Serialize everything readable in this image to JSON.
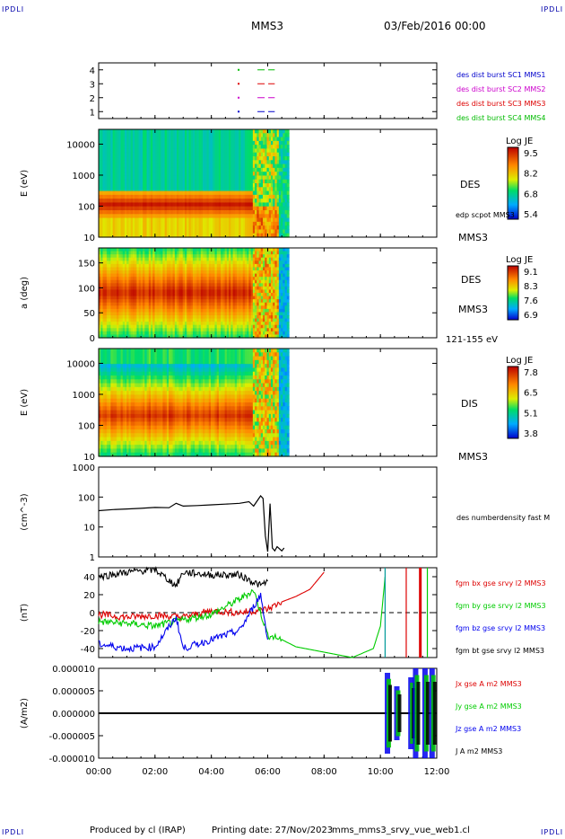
{
  "corner_labels": {
    "top_left": "IPDLI",
    "top_right": "IPDLI",
    "bottom_left": "IPDLI",
    "bottom_right": "IPDLI"
  },
  "header": {
    "spacecraft": "MMS3",
    "datetime": "03/Feb/2016 00:00"
  },
  "footer": {
    "produced_by": "Produced by cl (IRAP)",
    "printing_date": "Printing date: 27/Nov/2023",
    "file": "mms_mms3_srvy_vue_web1.cl"
  },
  "chart_data": [
    {
      "type": "scatter",
      "id": "availability",
      "ylim": [
        0.5,
        4.5
      ],
      "ytick_labels": [
        "1",
        "2",
        "3",
        "4"
      ],
      "segments": [
        {
          "y": 4,
          "from": "05:00",
          "to": "06:15",
          "color": "#00bb00"
        },
        {
          "y": 3,
          "from": "05:00",
          "to": "06:15",
          "color": "#dd0000"
        },
        {
          "y": 2,
          "from": "05:00",
          "to": "06:15",
          "color": "#cc00cc"
        },
        {
          "y": 1,
          "from": "05:00",
          "to": "06:15",
          "color": "#0000cc"
        }
      ],
      "legend": [
        {
          "label": "des dist burst SC1 MMS1",
          "color": "#0000cc"
        },
        {
          "label": "des dist burst SC2 MMS2",
          "color": "#cc00cc"
        },
        {
          "label": "des dist burst SC3 MMS3",
          "color": "#dd0000"
        },
        {
          "label": "des dist burst SC4 MMS4",
          "color": "#00bb00"
        }
      ]
    },
    {
      "type": "heatmap",
      "id": "des-energy",
      "ylabel": "E (eV)",
      "yscale": "log",
      "ylim": [
        10,
        30000
      ],
      "ytick_labels": [
        "10",
        "100",
        "1000",
        "10000"
      ],
      "right_labels": [
        "DES",
        "edp scpot MMS3",
        "MMS3"
      ],
      "colorbar": {
        "title": "Log JE",
        "ticks": [
          "9.5",
          "8.2",
          "6.8",
          "5.4"
        ]
      },
      "data_end": "06:45",
      "description_values": {
        "hot_band_center_eV": 80,
        "band_peak": 9.5,
        "background": 6.0
      }
    },
    {
      "type": "heatmap",
      "id": "des-pitch",
      "ylabel": "a (deg)",
      "ylim": [
        0,
        180
      ],
      "ytick_labels": [
        "0",
        "50",
        "100",
        "150"
      ],
      "right_labels": [
        "DES",
        "MMS3",
        "121-155 eV"
      ],
      "colorbar": {
        "title": "Log JE",
        "ticks": [
          "9.1",
          "8.3",
          "7.6",
          "6.9"
        ]
      },
      "data_end": "06:45"
    },
    {
      "type": "heatmap",
      "id": "dis-energy",
      "ylabel": "E (eV)",
      "yscale": "log",
      "ylim": [
        10,
        30000
      ],
      "ytick_labels": [
        "10",
        "100",
        "1000",
        "10000"
      ],
      "right_labels": [
        "DIS",
        "MMS3"
      ],
      "colorbar": {
        "title": "Log JE",
        "ticks": [
          "7.8",
          "6.5",
          "5.1",
          "3.8"
        ]
      },
      "data_end": "06:45"
    },
    {
      "type": "line",
      "id": "density",
      "ylabel": "(cm^-3)",
      "yscale": "log",
      "ylim": [
        1,
        1000
      ],
      "ytick_labels": [
        "1",
        "10",
        "100",
        "1000"
      ],
      "right_labels": [
        "des numberdensity fast M"
      ],
      "series": [
        {
          "name": "des numberdensity fast M",
          "color": "#000000",
          "x": [
            "00:00",
            "00:30",
            "01:00",
            "01:30",
            "02:00",
            "02:30",
            "02:45",
            "03:00",
            "03:30",
            "04:00",
            "04:30",
            "05:00",
            "05:20",
            "05:30",
            "05:45",
            "05:50",
            "05:55",
            "06:00",
            "06:05",
            "06:10",
            "06:15",
            "06:20",
            "06:30",
            "06:35"
          ],
          "y": [
            35,
            38,
            40,
            42,
            45,
            44,
            62,
            50,
            52,
            55,
            58,
            62,
            70,
            50,
            110,
            90,
            5,
            1.5,
            60,
            2,
            1.6,
            2.2,
            1.6,
            2.0
          ]
        }
      ]
    },
    {
      "type": "line",
      "id": "fgm",
      "ylabel": "(nT)",
      "ylim": [
        -50,
        50
      ],
      "ytick_labels": [
        "-40",
        "-20",
        "0",
        "20",
        "40"
      ],
      "series": [
        {
          "name": "fgm bx gse srvy l2 MMS3",
          "color": "#dd0000",
          "x": [
            "00:00",
            "01:00",
            "02:00",
            "03:00",
            "04:00",
            "05:00",
            "06:00",
            "06:30",
            "07:00",
            "07:30",
            "08:00"
          ],
          "y": [
            -2,
            -5,
            -3,
            -5,
            2,
            0,
            4,
            12,
            18,
            26,
            45
          ]
        },
        {
          "name": "fgm by gse srvy l2 MMS3",
          "color": "#00cc00",
          "x": [
            "00:00",
            "01:00",
            "02:00",
            "03:00",
            "04:00",
            "05:00",
            "05:30",
            "06:00",
            "06:30",
            "07:00",
            "08:00",
            "09:00",
            "09:45",
            "10:00",
            "10:10"
          ],
          "y": [
            -10,
            -12,
            -15,
            -8,
            -2,
            15,
            25,
            -25,
            -30,
            -38,
            -44,
            -50,
            -40,
            -15,
            40
          ]
        },
        {
          "name": "fgm bz gse srvy l2 MMS3",
          "color": "#0000ee",
          "x": [
            "00:00",
            "01:00",
            "02:00",
            "02:45",
            "03:00",
            "04:00",
            "05:00",
            "05:45",
            "06:00"
          ],
          "y": [
            -35,
            -40,
            -38,
            -5,
            -40,
            -30,
            -20,
            20,
            -30
          ]
        },
        {
          "name": "fgm bt gse srvy l2 MMS3",
          "color": "#000000",
          "x": [
            "00:00",
            "01:00",
            "02:00",
            "02:45",
            "03:00",
            "04:00",
            "05:00",
            "05:45",
            "06:00"
          ],
          "y": [
            40,
            45,
            48,
            30,
            45,
            42,
            42,
            30,
            35
          ]
        }
      ],
      "spikes": [
        {
          "at": "10:10",
          "color": "#009999"
        },
        {
          "at": "10:55",
          "color": "#dd0000"
        },
        {
          "at": "11:25",
          "color": "#dd0000"
        },
        {
          "at": "11:40",
          "color": "#00cc00"
        }
      ]
    },
    {
      "type": "line",
      "id": "current",
      "ylabel": "(A/m2)",
      "ylim": [
        -1e-05,
        1e-05
      ],
      "ytick_labels": [
        "-0.000010",
        "-0.000005",
        "0.000000",
        "0.000005",
        "0.000010"
      ],
      "series": [
        {
          "name": "Jx gse A m2 MMS3",
          "color": "#dd0000"
        },
        {
          "name": "Jy gse A m2 MMS3",
          "color": "#00cc00"
        },
        {
          "name": "Jz gse A m2 MMS3",
          "color": "#0000ee"
        },
        {
          "name": "J A m2 MMS3",
          "color": "#000000"
        }
      ],
      "bursts": [
        {
          "at": "10:15",
          "amp": 9e-06
        },
        {
          "at": "10:35",
          "amp": 6e-06
        },
        {
          "at": "11:05",
          "amp": 8e-06
        },
        {
          "at": "11:15",
          "amp": 1e-05
        },
        {
          "at": "11:35",
          "amp": 1e-05
        },
        {
          "at": "11:50",
          "amp": 1e-05
        }
      ]
    }
  ],
  "xaxis": {
    "tick_labels": [
      "00:00",
      "02:00",
      "04:00",
      "06:00",
      "08:00",
      "10:00",
      "12:00"
    ],
    "range": [
      "00:00",
      "12:00"
    ]
  }
}
